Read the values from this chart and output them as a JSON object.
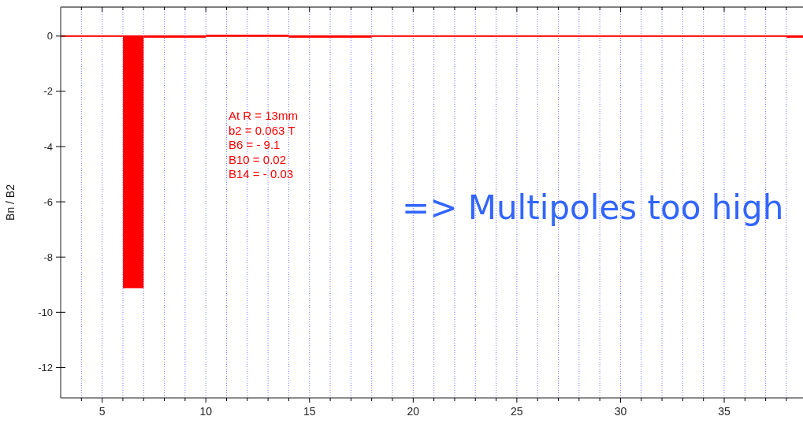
{
  "chart_data": {
    "type": "histogram",
    "ylabel": "Bn / B2",
    "bins": [
      3,
      6,
      7,
      10,
      14,
      18,
      38,
      38.8
    ],
    "values": [
      0,
      -9.1,
      -0.03,
      0.02,
      -0.03,
      0,
      -0.03
    ],
    "color": "#ff0000",
    "xlim": [
      3,
      38.8
    ],
    "xticks": [
      {
        "value": 4,
        "label": null
      },
      5,
      {
        "value": 6,
        "label": null
      },
      {
        "value": 7,
        "label": null
      },
      {
        "value": 8,
        "label": null
      },
      {
        "value": 9,
        "label": null
      },
      10,
      {
        "value": 11,
        "label": null
      },
      {
        "value": 12,
        "label": null
      },
      {
        "value": 13,
        "label": null
      },
      {
        "value": 14,
        "label": null
      },
      15,
      {
        "value": 16,
        "label": null
      },
      {
        "value": 17,
        "label": null
      },
      {
        "value": 18,
        "label": null
      },
      {
        "value": 19,
        "label": null
      },
      20,
      {
        "value": 21,
        "label": null
      },
      {
        "value": 22,
        "label": null
      },
      {
        "value": 23,
        "label": null
      },
      {
        "value": 24,
        "label": null
      },
      25,
      {
        "value": 26,
        "label": null
      },
      {
        "value": 27,
        "label": null
      },
      {
        "value": 28,
        "label": null
      },
      {
        "value": 29,
        "label": null
      },
      30,
      {
        "value": 31,
        "label": null
      },
      {
        "value": 32,
        "label": null
      },
      {
        "value": 33,
        "label": null
      },
      {
        "value": 34,
        "label": null
      },
      35,
      {
        "value": 36,
        "label": null
      },
      {
        "value": 37,
        "label": null
      },
      {
        "value": 38,
        "label": null
      }
    ],
    "ylim": [
      -13.1,
      1.05
    ],
    "yticks": [
      0,
      -2,
      -4,
      -6,
      -8,
      -10,
      -12
    ],
    "grid": "x",
    "annotations": [
      "At R = 13mm\nb2 = 0.063 T\nB6 = - 9.1\nB10 = 0.02\nB14 = - 0.03",
      "=> Multipoles too high"
    ]
  }
}
